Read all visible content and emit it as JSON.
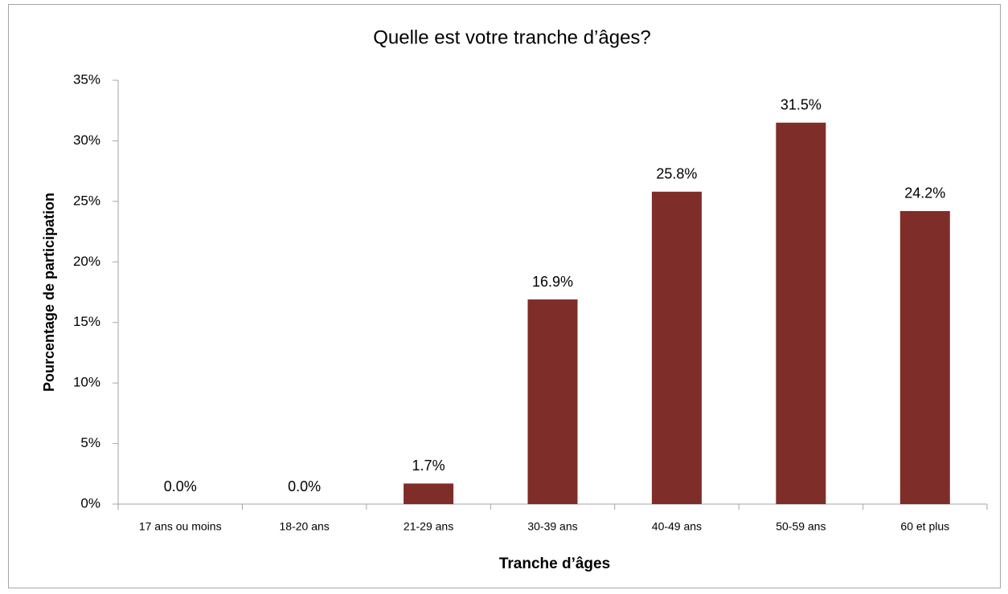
{
  "chart_data": {
    "type": "bar",
    "title": "Quelle est votre tranche d’âges?",
    "x_label": "Tranche d’âges",
    "y_label": "Pourcentage de participation",
    "categories": [
      "17 ans ou moins",
      "18-20 ans",
      "21-29 ans",
      "30-39 ans",
      "40-49 ans",
      "50-59 ans",
      "60 et plus"
    ],
    "values": [
      0,
      0,
      1.7,
      16.9,
      25.8,
      31.5,
      24.2
    ],
    "value_labels": [
      "0.0%",
      "0.0%",
      "1.7%",
      "16.9%",
      "25.8%",
      "31.5%",
      "24.2%"
    ],
    "color": "#7f2d28",
    "ylim": [
      0,
      35
    ],
    "yticks": [
      {
        "value": 0,
        "label": "0%"
      },
      {
        "value": 5,
        "label": "5%"
      },
      {
        "value": 10,
        "label": "10%"
      },
      {
        "value": 15,
        "label": "15%"
      },
      {
        "value": 20,
        "label": "20%"
      },
      {
        "value": 25,
        "label": "25%"
      },
      {
        "value": 30,
        "label": "30%"
      },
      {
        "value": 35,
        "label": "35%"
      }
    ],
    "grid": false
  }
}
